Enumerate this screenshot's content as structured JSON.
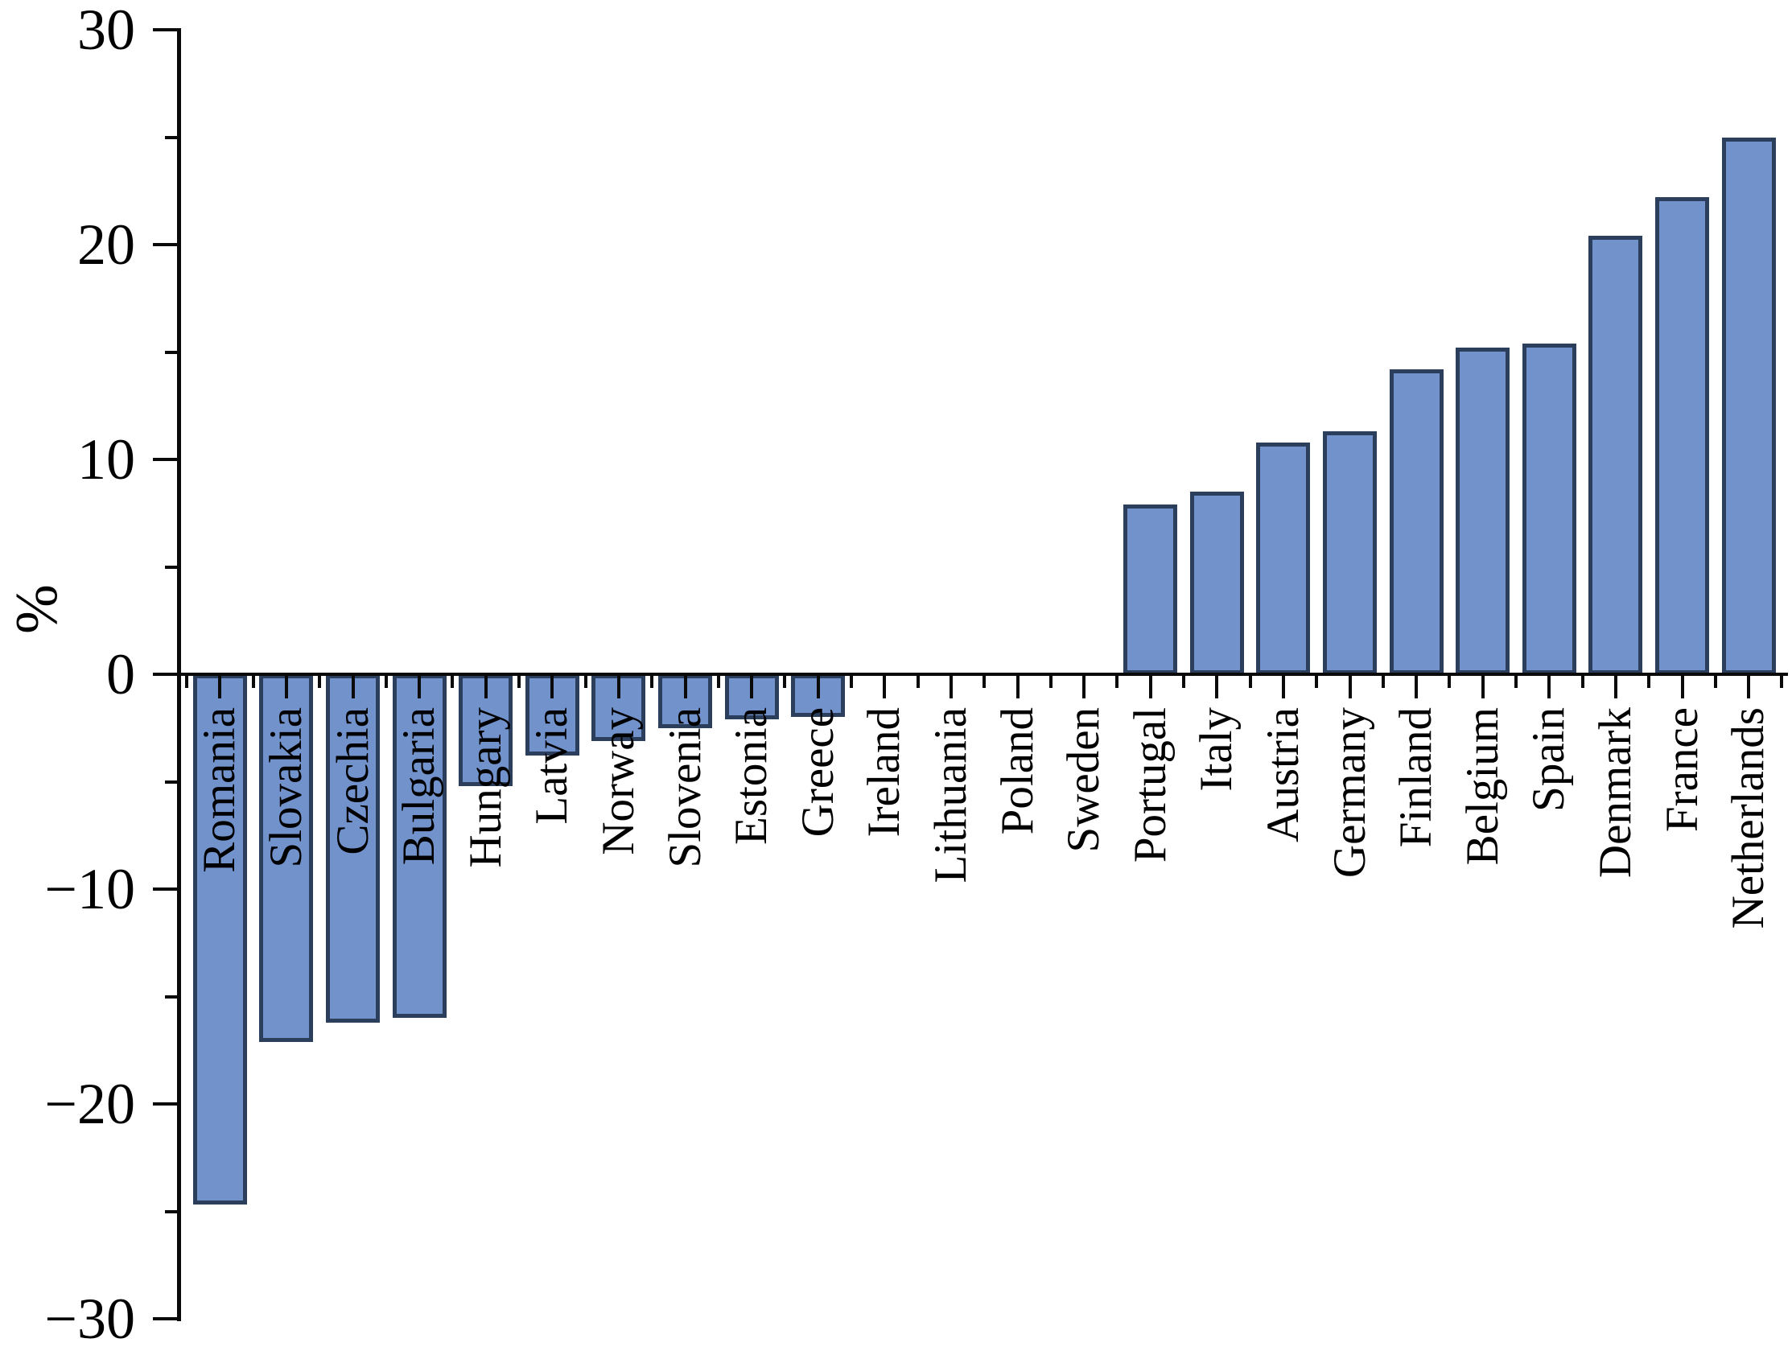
{
  "chart_data": {
    "type": "bar",
    "title": "",
    "ylabel": "%",
    "xlabel": "",
    "ylim": [
      -30,
      30
    ],
    "y_major_step": 10,
    "y_minor_step": 5,
    "y_tick_values": [
      30,
      20,
      10,
      0,
      -10,
      -20,
      -30
    ],
    "y_tick_labels": [
      "30",
      "20",
      "10",
      "0",
      "−10",
      "−20",
      "−30"
    ],
    "y_minor_tick_values": [
      25,
      15,
      5,
      -5,
      -15,
      -25
    ],
    "grid": false,
    "legend": "none",
    "bar_fill": "#7292cc",
    "bar_border": "#2b3e5c",
    "axis_color": "#0a0a0a",
    "background": "#ffffff",
    "categories": [
      "Romania",
      "Slovakia",
      "Czechia",
      "Bulgaria",
      "Hungary",
      "Latvia",
      "Norway",
      "Slovenia",
      "Estonia",
      "Greece",
      "Ireland",
      "Lithuania",
      "Poland",
      "Sweden",
      "Portugal",
      "Italy",
      "Austria",
      "Germany",
      "Finland",
      "Belgium",
      "Spain",
      "Denmark",
      "France",
      "Netherlands"
    ],
    "values": [
      -24.7,
      -17.1,
      -16.2,
      -16.0,
      -5.2,
      -3.8,
      -3.1,
      -2.5,
      -2.1,
      -2.0,
      0,
      0,
      0,
      0,
      7.9,
      8.5,
      10.8,
      11.3,
      14.2,
      15.2,
      15.4,
      20.4,
      22.2,
      25.0
    ]
  }
}
